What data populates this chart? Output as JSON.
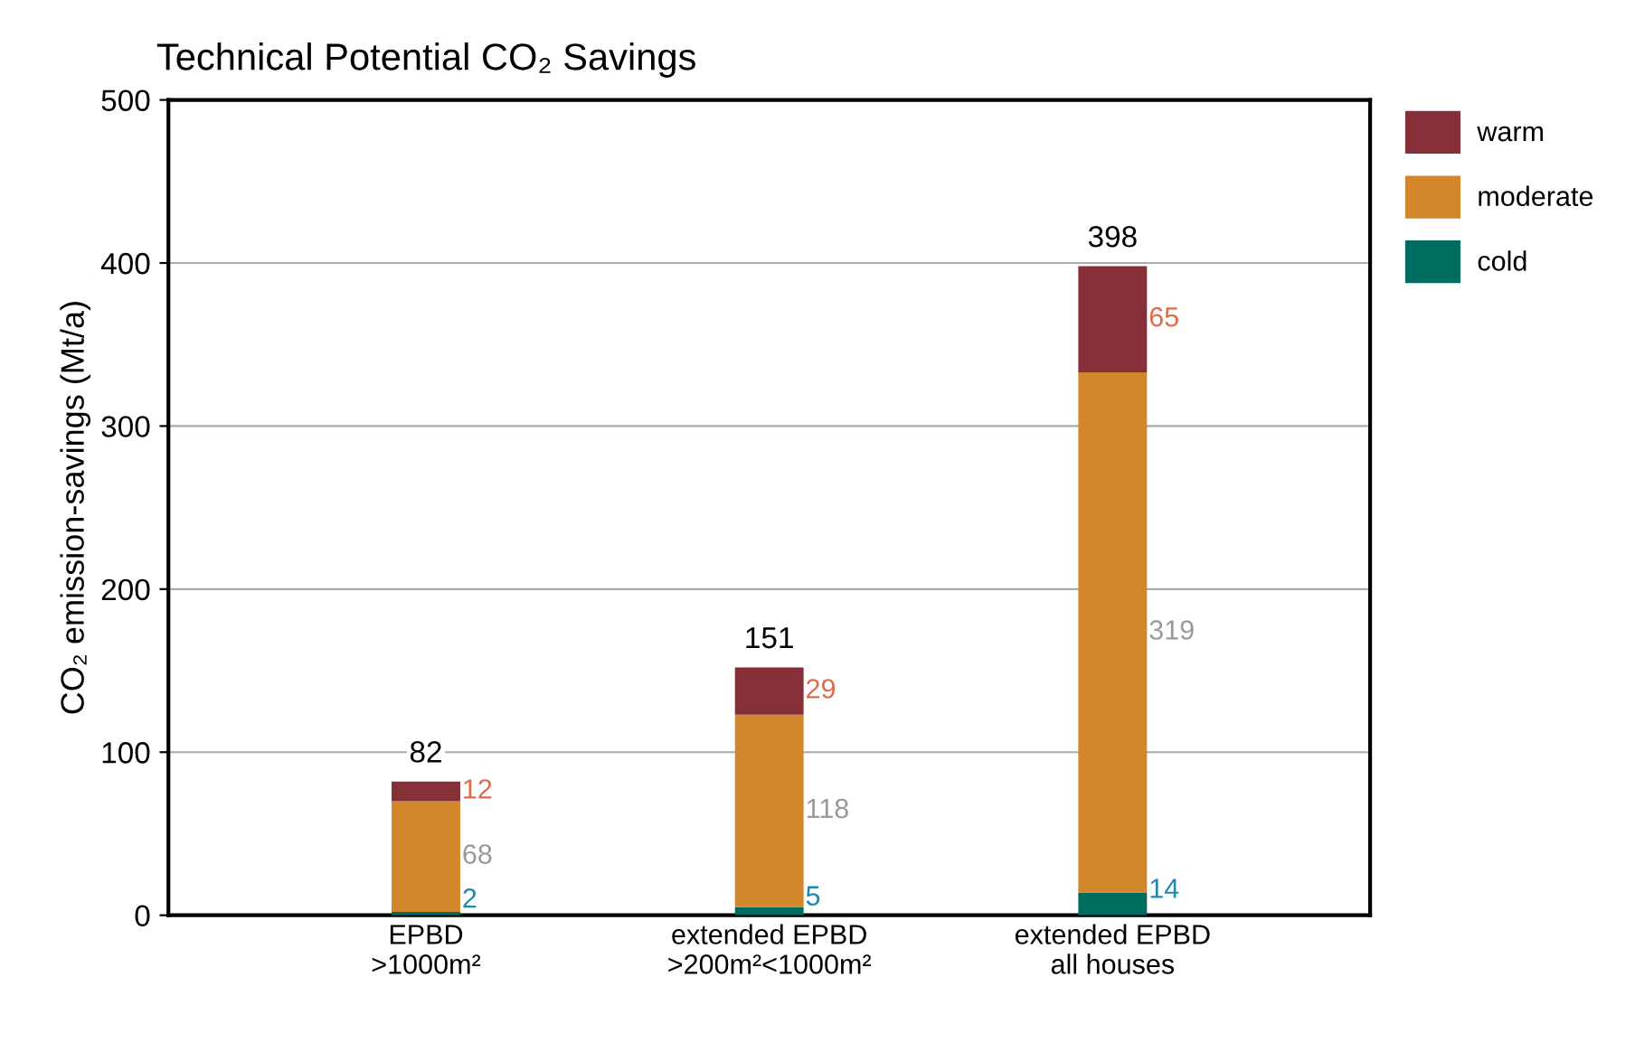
{
  "chart_data": {
    "type": "bar",
    "stacked": true,
    "title": "Technical Potential CO₂ Savings",
    "ylabel": "CO₂ emission-savings (Mt/a)",
    "categories": [
      "EPBD\n>1000m²",
      "extended EPBD\n>200m²<1000m²",
      "extended EPBD\nall houses"
    ],
    "series": [
      {
        "name": "cold",
        "color": "#006b5f",
        "values": [
          2,
          5,
          14
        ]
      },
      {
        "name": "moderate",
        "color": "#d4862a",
        "values": [
          68,
          118,
          319
        ]
      },
      {
        "name": "warm",
        "color": "#862f38",
        "values": [
          12,
          29,
          65
        ]
      }
    ],
    "totals": [
      "82",
      "151",
      "398"
    ],
    "data_labels": true,
    "ylim": [
      0,
      500
    ],
    "yticks": [
      0,
      100,
      200,
      300,
      400,
      500
    ],
    "grid": "y",
    "legend": "top right"
  }
}
